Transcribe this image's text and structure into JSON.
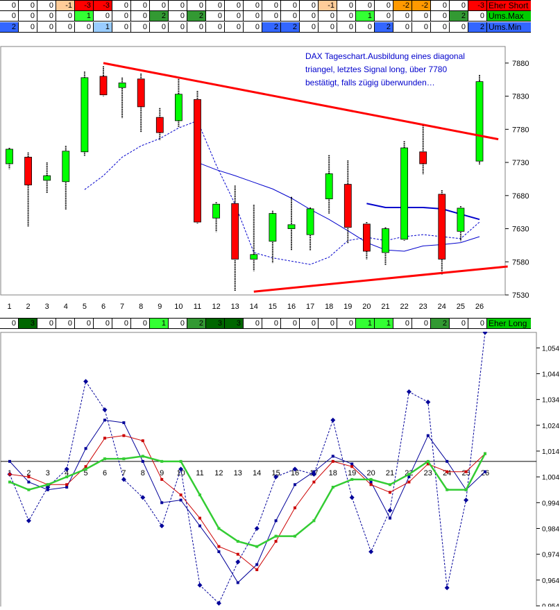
{
  "signal_rows": [
    {
      "label": "Eher Short",
      "label_color": "#ff0000",
      "values": [
        "0",
        "0",
        "0",
        "-1",
        "-3",
        "-3",
        "0",
        "0",
        "0",
        "0",
        "0",
        "0",
        "0",
        "0",
        "0",
        "0",
        "0",
        "-1",
        "0",
        "0",
        "0",
        "-2",
        "-2",
        "0",
        "0",
        "-3"
      ],
      "colors": [
        "",
        "",
        "",
        "#ffcc99",
        "#ff0000",
        "#ff0000",
        "",
        "",
        "",
        "",
        "",
        "",
        "",
        "",
        "",
        "",
        "",
        "#ffcc99",
        "",
        "",
        "",
        "#ff9900",
        "#ff9900",
        "",
        "",
        "#ff0000"
      ]
    },
    {
      "label": "Ums.Max",
      "label_color": "#00cc00",
      "values": [
        "0",
        "0",
        "0",
        "0",
        "1",
        "0",
        "0",
        "0",
        "2",
        "0",
        "2",
        "0",
        "0",
        "0",
        "0",
        "0",
        "0",
        "0",
        "0",
        "1",
        "0",
        "0",
        "0",
        "0",
        "2",
        "0"
      ],
      "colors": [
        "",
        "",
        "",
        "",
        "#33ff33",
        "",
        "",
        "",
        "#339933",
        "",
        "#339933",
        "",
        "",
        "",
        "",
        "",
        "",
        "",
        "",
        "#33ff33",
        "",
        "",
        "",
        "",
        "#339933",
        ""
      ]
    },
    {
      "label": "Ums.Min",
      "label_color": "#3366ff",
      "values": [
        "2",
        "0",
        "0",
        "0",
        "0",
        "1",
        "0",
        "0",
        "0",
        "0",
        "0",
        "0",
        "0",
        "0",
        "2",
        "2",
        "0",
        "0",
        "0",
        "0",
        "2",
        "0",
        "0",
        "0",
        "0",
        "2"
      ],
      "colors": [
        "#3366ff",
        "",
        "",
        "",
        "",
        "#99ccff",
        "",
        "",
        "",
        "",
        "",
        "",
        "",
        "",
        "#3366ff",
        "#3366ff",
        "",
        "",
        "",
        "",
        "#3366ff",
        "",
        "",
        "",
        "",
        "#3366ff"
      ]
    },
    {
      "label": "Eher Long",
      "label_color": "#00cc00",
      "values": [
        "0",
        "3",
        "0",
        "0",
        "0",
        "0",
        "0",
        "0",
        "1",
        "0",
        "2",
        "3",
        "3",
        "0",
        "0",
        "0",
        "0",
        "0",
        "0",
        "1",
        "1",
        "0",
        "0",
        "2",
        "0",
        "0"
      ],
      "colors": [
        "",
        "#006600",
        "",
        "",
        "",
        "",
        "",
        "",
        "#33ff33",
        "",
        "#339933",
        "#006600",
        "#006600",
        "",
        "",
        "",
        "",
        "",
        "",
        "#33ff33",
        "#33ff33",
        "",
        "",
        "#339933",
        "",
        ""
      ]
    }
  ],
  "chart_data": [
    {
      "type": "candlestick",
      "annotation": "DAX Tageschart.Ausbildung eines diagonal triangel, letztes Signal long, über 7780 bestätigt, falls zügig überwunden…",
      "x": [
        "1",
        "2",
        "3",
        "4",
        "5",
        "6",
        "7",
        "8",
        "9",
        "10",
        "11",
        "12",
        "13",
        "14",
        "15",
        "16",
        "17",
        "18",
        "19",
        "20",
        "21",
        "22",
        "23",
        "24",
        "25",
        "26"
      ],
      "ylim": [
        7530,
        7905
      ],
      "yticks": [
        7530,
        7580,
        7630,
        7680,
        7730,
        7780,
        7830,
        7880
      ],
      "candles": [
        {
          "x": 1,
          "open": 7728,
          "high": 7752,
          "low": 7720,
          "close": 7750,
          "color": "green"
        },
        {
          "x": 2,
          "open": 7738,
          "high": 7745,
          "low": 7633,
          "close": 7696,
          "color": "red"
        },
        {
          "x": 3,
          "open": 7703,
          "high": 7730,
          "low": 7684,
          "close": 7710,
          "color": "green"
        },
        {
          "x": 4,
          "open": 7701,
          "high": 7755,
          "low": 7658,
          "close": 7747,
          "color": "green"
        },
        {
          "x": 5,
          "open": 7746,
          "high": 7867,
          "low": 7740,
          "close": 7858,
          "color": "green"
        },
        {
          "x": 6,
          "open": 7860,
          "high": 7875,
          "low": 7830,
          "close": 7832,
          "color": "red"
        },
        {
          "x": 7,
          "open": 7843,
          "high": 7858,
          "low": 7797,
          "close": 7850,
          "color": "green"
        },
        {
          "x": 8,
          "open": 7856,
          "high": 7864,
          "low": 7775,
          "close": 7814,
          "color": "red"
        },
        {
          "x": 9,
          "open": 7798,
          "high": 7812,
          "low": 7764,
          "close": 7775,
          "color": "red"
        },
        {
          "x": 10,
          "open": 7793,
          "high": 7856,
          "low": 7783,
          "close": 7833,
          "color": "green"
        },
        {
          "x": 11,
          "open": 7825,
          "high": 7838,
          "low": 7638,
          "close": 7640,
          "color": "red"
        },
        {
          "x": 12,
          "open": 7646,
          "high": 7670,
          "low": 7625,
          "close": 7667,
          "color": "green"
        },
        {
          "x": 13,
          "open": 7668,
          "high": 7695,
          "low": 7536,
          "close": 7584,
          "color": "red"
        },
        {
          "x": 14,
          "open": 7584,
          "high": 7666,
          "low": 7566,
          "close": 7591,
          "color": "green"
        },
        {
          "x": 15,
          "open": 7611,
          "high": 7657,
          "low": 7578,
          "close": 7653,
          "color": "green"
        },
        {
          "x": 16,
          "open": 7630,
          "high": 7678,
          "low": 7597,
          "close": 7636,
          "color": "green"
        },
        {
          "x": 17,
          "open": 7621,
          "high": 7662,
          "low": 7597,
          "close": 7660,
          "color": "green"
        },
        {
          "x": 18,
          "open": 7675,
          "high": 7741,
          "low": 7652,
          "close": 7713,
          "color": "green"
        },
        {
          "x": 19,
          "open": 7697,
          "high": 7733,
          "low": 7608,
          "close": 7632,
          "color": "red"
        },
        {
          "x": 20,
          "open": 7637,
          "high": 7640,
          "low": 7584,
          "close": 7596,
          "color": "red"
        },
        {
          "x": 21,
          "open": 7594,
          "high": 7632,
          "low": 7575,
          "close": 7630,
          "color": "green"
        },
        {
          "x": 22,
          "open": 7614,
          "high": 7762,
          "low": 7612,
          "close": 7752,
          "color": "green"
        },
        {
          "x": 23,
          "open": 7746,
          "high": 7786,
          "low": 7712,
          "close": 7728,
          "color": "red"
        },
        {
          "x": 24,
          "open": 7682,
          "high": 7688,
          "low": 7561,
          "close": 7584,
          "color": "red"
        },
        {
          "x": 25,
          "open": 7626,
          "high": 7664,
          "low": 7611,
          "close": 7661,
          "color": "green"
        },
        {
          "x": 26,
          "open": 7732,
          "high": 7862,
          "low": 7727,
          "close": 7852,
          "color": "green"
        }
      ],
      "series": [
        {
          "style": "dashed",
          "color": "#0000cc",
          "x": [
            5,
            6,
            7,
            8,
            9,
            10,
            11,
            12,
            13,
            14,
            15,
            16,
            17,
            18,
            19,
            20,
            21,
            22,
            23,
            24,
            25,
            26
          ],
          "values": [
            7689,
            7710,
            7738,
            7755,
            7766,
            7782,
            7793,
            7726,
            7667,
            7594,
            7586,
            7581,
            7576,
            7587,
            7612,
            7617,
            7612,
            7618,
            7621,
            7618,
            7615,
            7640
          ]
        },
        {
          "style": "solid",
          "color": "#0000cc",
          "x": [
            11,
            12,
            13,
            14,
            15,
            16,
            17,
            18,
            19,
            20,
            21,
            22,
            23,
            24,
            25,
            26
          ],
          "values": [
            7730,
            7719,
            7710,
            7700,
            7690,
            7676,
            7659,
            7644,
            7627,
            7609,
            7598,
            7596,
            7604,
            7606,
            7609,
            7618
          ]
        },
        {
          "style": "solid-thick",
          "color": "#0000cc",
          "x": [
            20,
            21,
            22,
            23,
            24,
            25,
            26
          ],
          "values": [
            7668,
            7662,
            7662,
            7662,
            7660,
            7652,
            7644
          ]
        }
      ],
      "trendlines": [
        {
          "color": "#ff0000",
          "from": [
            6,
            7880
          ],
          "to": [
            27,
            7765
          ]
        },
        {
          "color": "#ff0000",
          "from": [
            14,
            7535
          ],
          "to": [
            27.5,
            7573
          ]
        }
      ]
    },
    {
      "type": "line",
      "x": [
        "1",
        "2",
        "3",
        "4",
        "5",
        "6",
        "7",
        "8",
        "9",
        "10",
        "11",
        "12",
        "13",
        "14",
        "15",
        "16",
        "17",
        "18",
        "19",
        "20",
        "21",
        "22",
        "23",
        "24",
        "25",
        "26"
      ],
      "ylim": [
        0.954,
        1.06
      ],
      "yticks": [
        0.954,
        0.964,
        0.974,
        0.984,
        0.994,
        1.004,
        1.014,
        1.024,
        1.034,
        1.044,
        1.054
      ],
      "ytick_labels": [
        "0,954",
        "0,964",
        "0,974",
        "0,984",
        "0,994",
        "1,004",
        "1,014",
        "1,024",
        "1,034",
        "1,044",
        "1,054"
      ],
      "reference_line": 1.01,
      "series": [
        {
          "style": "dashed",
          "color": "#000099",
          "values": [
            1.005,
            0.987,
            1.0,
            1.007,
            1.041,
            1.03,
            1.003,
            0.996,
            0.985,
            1.007,
            0.962,
            0.955,
            0.971,
            0.984,
            1.004,
            1.007,
            1.005,
            1.026,
            0.996,
            0.975,
            0.991,
            1.037,
            1.033,
            0.961,
            0.995,
            1.06
          ]
        },
        {
          "style": "solid",
          "color": "#000099",
          "values": [
            1.01,
            1.002,
            0.999,
            1.0,
            1.015,
            1.026,
            1.025,
            1.01,
            0.994,
            0.995,
            0.985,
            0.975,
            0.963,
            0.97,
            0.987,
            1.001,
            1.006,
            1.012,
            1.009,
            1.002,
            0.988,
            1.004,
            1.02,
            1.01,
            0.999,
            1.006
          ]
        },
        {
          "style": "solid",
          "color": "#cc0000",
          "values": [
            1.005,
            1.004,
            1.001,
            1.001,
            1.008,
            1.019,
            1.02,
            1.018,
            1.003,
            0.997,
            0.988,
            0.977,
            0.974,
            0.968,
            0.979,
            0.992,
            1.002,
            1.01,
            1.008,
            1.001,
            0.998,
            1.002,
            1.009,
            1.006,
            1.006,
            1.013
          ]
        },
        {
          "style": "solid-thick",
          "color": "#33cc33",
          "values": [
            1.002,
            0.999,
            1.001,
            1.004,
            1.007,
            1.011,
            1.011,
            1.012,
            1.01,
            1.01,
            0.997,
            0.984,
            0.979,
            0.977,
            0.981,
            0.981,
            0.987,
            1.0,
            1.003,
            1.003,
            1.001,
            1.005,
            1.01,
            0.999,
            0.999,
            1.013
          ]
        }
      ]
    }
  ]
}
